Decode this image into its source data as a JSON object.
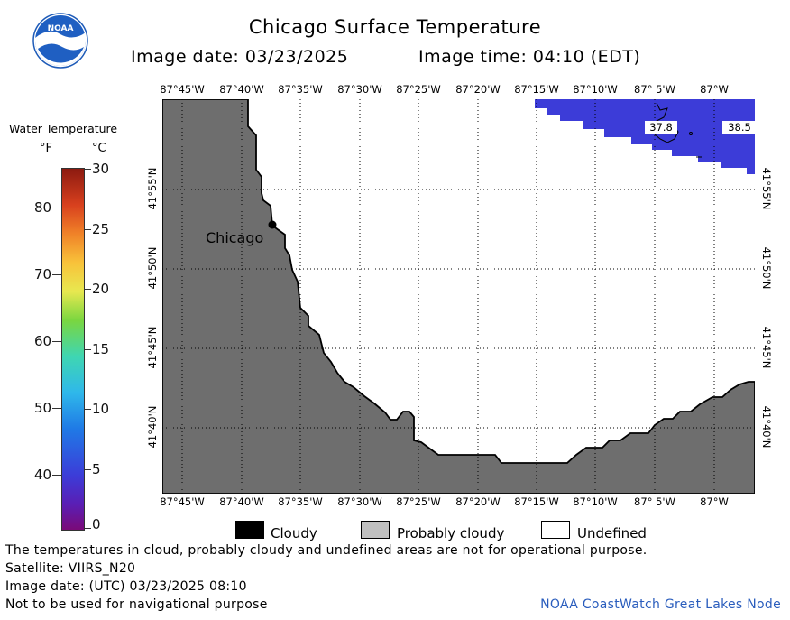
{
  "header": {
    "title": "Chicago Surface Temperature",
    "image_date": "Image date: 03/23/2025",
    "image_time": "Image time: 04:10 (EDT)"
  },
  "logo": {
    "text": "NOAA",
    "icon": "noaa-logo-icon"
  },
  "map": {
    "lon_labels": [
      "87°45'W",
      "87°40'W",
      "87°35'W",
      "87°30'W",
      "87°25'W",
      "87°20'W",
      "87°15'W",
      "87°10'W",
      "87° 5'W",
      "87°W"
    ],
    "lat_labels": [
      "41°55'N",
      "41°50'N",
      "41°45'N",
      "41°40'N"
    ],
    "city_label": "Chicago",
    "temp_labels": [
      "37.8",
      "38.5"
    ],
    "colors": {
      "land": "#6e6e6e",
      "water_cold": "#3c3cd8",
      "water_undefined": "#ffffff",
      "grid": "#000000"
    }
  },
  "legend": {
    "title": "Water Temperature",
    "unit_f": "°F",
    "unit_c": "°C",
    "f_ticks": [
      "80",
      "70",
      "60",
      "50",
      "40"
    ],
    "c_ticks": [
      "30",
      "25",
      "20",
      "15",
      "10",
      "5",
      "0"
    ]
  },
  "key": {
    "cloudy": "Cloudy",
    "probably_cloudy": "Probably cloudy",
    "undefined": "Undefined",
    "colors": {
      "cloudy": "#000000",
      "probably_cloudy": "#c0c0c0",
      "undefined": "#ffffff"
    }
  },
  "footer": {
    "disclaimer": "The temperatures in cloud, probably cloudy and undefined areas are not for operational purpose.",
    "satellite": "Satellite: VIIRS_N20",
    "utc_date": "Image date: (UTC) 03/23/2025  08:10",
    "nav_warning": "Not to be used for navigational purpose",
    "credit": "NOAA CoastWatch Great Lakes Node"
  }
}
